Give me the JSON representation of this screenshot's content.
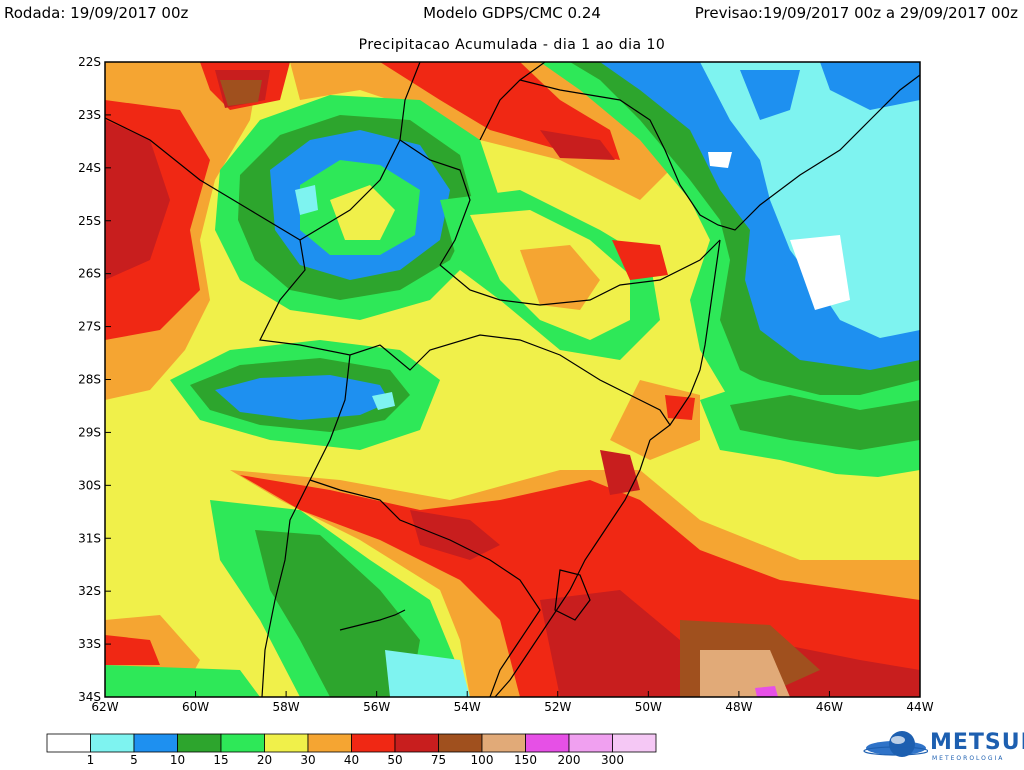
{
  "header": {
    "left": "Rodada: 19/09/2017 00z",
    "center": "Modelo GDPS/CMC 0.24",
    "right": "Previsao:19/09/2017 00z a 29/09/2017 00z",
    "subtitle": "Precipitacao Acumulada - dia 1 ao dia 10"
  },
  "map": {
    "lon_range": [
      -62,
      -44
    ],
    "lat_range": [
      -34,
      -22
    ],
    "lon_ticks": [
      "62W",
      "60W",
      "58W",
      "56W",
      "54W",
      "52W",
      "50W",
      "48W",
      "46W",
      "44W"
    ],
    "lat_ticks": [
      "22S",
      "23S",
      "24S",
      "25S",
      "26S",
      "27S",
      "28S",
      "29S",
      "30S",
      "31S",
      "32S",
      "33S",
      "34S"
    ]
  },
  "legend": {
    "colors": [
      "#ffffff",
      "#7ef3f0",
      "#1e90f0",
      "#2da52d",
      "#2ee858",
      "#f0f04a",
      "#f5a532",
      "#f02814",
      "#c81e1e",
      "#a0501e",
      "#e1aa78",
      "#e650e6",
      "#f0a0f0",
      "#f5c8f5"
    ],
    "labels": [
      "1",
      "5",
      "10",
      "15",
      "20",
      "30",
      "40",
      "50",
      "75",
      "100",
      "150",
      "200",
      "300"
    ]
  },
  "logo": {
    "name": "METSUL",
    "sub": "METEOROLOGIA"
  }
}
